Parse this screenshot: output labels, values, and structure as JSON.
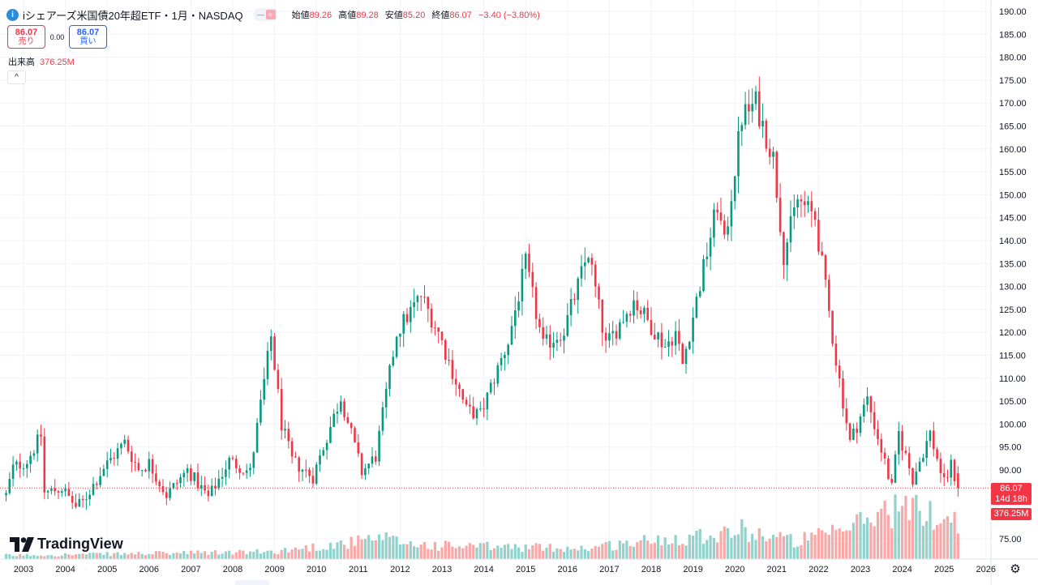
{
  "legend": {
    "symbol_icon": "i",
    "title": "iシェアーズ米国債20年超ETF・1月・NASDAQ",
    "pill_left": "—",
    "pill_right": "≈",
    "open_label": "始値",
    "open": "89.26",
    "high_label": "高値",
    "high": "89.28",
    "low_label": "安値",
    "low": "85.20",
    "close_label": "終値",
    "close": "86.07",
    "change": "−3.40 (−3.80%)"
  },
  "trade": {
    "sell_price": "86.07",
    "sell_label": "売り",
    "spread": "0.00",
    "buy_price": "86.07",
    "buy_label": "買い"
  },
  "volume_legend": {
    "label": "出来高",
    "value": "376.25M"
  },
  "collapse_icon": "^",
  "logo_text": "TradingView",
  "price_tag": {
    "price": "86.07",
    "countdown": "14d 18h"
  },
  "volume_tag": "376.25M",
  "gear_icon": "⚙",
  "colors": {
    "up": "#089981",
    "down": "#f23645",
    "up_volume": "#92d2cc",
    "down_volume": "#f7a9a7",
    "grid": "#f0f3fa"
  },
  "chart_data": {
    "type": "candlestick",
    "interval": "1 month",
    "ylim": [
      70,
      190
    ],
    "y_ticks": [
      190,
      185,
      180,
      175,
      170,
      165,
      160,
      155,
      150,
      145,
      140,
      135,
      130,
      125,
      120,
      115,
      110,
      105,
      100,
      95,
      90,
      75
    ],
    "x_ticks": [
      "2003",
      "2004",
      "2005",
      "2006",
      "2007",
      "2008",
      "2009",
      "2010",
      "2011",
      "2012",
      "2013",
      "2014",
      "2015",
      "2016",
      "2017",
      "2018",
      "2019",
      "2020",
      "2021",
      "2022",
      "2023",
      "2024",
      "2025",
      "2026"
    ],
    "last_price": 86.07,
    "path": [
      [
        "2002-08",
        84.5
      ],
      [
        "2002-10",
        90.5
      ],
      [
        "2003-02",
        92.0
      ],
      [
        "2003-06",
        97.5
      ],
      [
        "2003-07",
        85.0
      ],
      [
        "2003-12",
        86.0
      ],
      [
        "2004-04",
        82.0
      ],
      [
        "2004-06",
        83.0
      ],
      [
        "2004-12",
        90.5
      ],
      [
        "2005-06",
        96.0
      ],
      [
        "2005-10",
        90.0
      ],
      [
        "2006-01",
        91.5
      ],
      [
        "2006-06",
        84.5
      ],
      [
        "2006-12",
        90.0
      ],
      [
        "2007-06",
        84.0
      ],
      [
        "2007-12",
        92.0
      ],
      [
        "2008-06",
        89.5
      ],
      [
        "2008-12",
        119.0
      ],
      [
        "2009-03",
        100.0
      ],
      [
        "2009-06",
        92.0
      ],
      [
        "2009-12",
        88.5
      ],
      [
        "2010-08",
        106.0
      ],
      [
        "2011-02",
        89.5
      ],
      [
        "2011-06",
        93.0
      ],
      [
        "2011-12",
        120.0
      ],
      [
        "2012-07",
        128.0
      ],
      [
        "2012-12",
        120.0
      ],
      [
        "2013-08",
        103.0
      ],
      [
        "2013-12",
        102.0
      ],
      [
        "2014-08",
        118.0
      ],
      [
        "2015-01",
        135.0
      ],
      [
        "2015-06",
        117.0
      ],
      [
        "2015-12",
        120.5
      ],
      [
        "2016-07",
        137.5
      ],
      [
        "2016-12",
        117.0
      ],
      [
        "2017-08",
        127.0
      ],
      [
        "2018-05",
        117.0
      ],
      [
        "2018-08",
        120.0
      ],
      [
        "2018-10",
        113.0
      ],
      [
        "2019-08",
        148.0
      ],
      [
        "2019-10",
        139.0
      ],
      [
        "2020-03",
        167.0
      ],
      [
        "2020-07",
        170.0
      ],
      [
        "2020-12",
        158.0
      ],
      [
        "2021-03",
        137.0
      ],
      [
        "2021-07",
        149.0
      ],
      [
        "2021-12",
        145.0
      ],
      [
        "2022-06",
        114.0
      ],
      [
        "2022-10",
        96.0
      ],
      [
        "2023-03",
        105.5
      ],
      [
        "2023-10",
        86.0
      ],
      [
        "2023-12",
        98.0
      ],
      [
        "2024-04",
        88.0
      ],
      [
        "2024-09",
        98.0
      ],
      [
        "2025-01",
        87.0
      ],
      [
        "2025-03",
        91.0
      ],
      [
        "2025-05",
        86.07
      ]
    ],
    "volume_peaks": [
      [
        "2002-08",
        2
      ],
      [
        "2008-12",
        4
      ],
      [
        "2011-08",
        11
      ],
      [
        "2012-06",
        8
      ],
      [
        "2013-06",
        7
      ],
      [
        "2016-06",
        6
      ],
      [
        "2020-03",
        16
      ],
      [
        "2021-06",
        10
      ],
      [
        "2022-06",
        14
      ],
      [
        "2023-10",
        28
      ],
      [
        "2024-06",
        26
      ],
      [
        "2025-04",
        22
      ]
    ],
    "volume_max": 40
  }
}
